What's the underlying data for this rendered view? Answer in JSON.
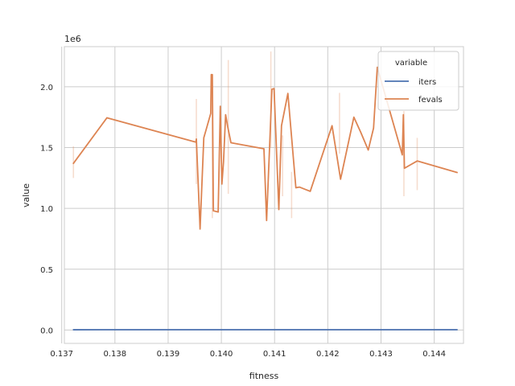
{
  "chart_data": {
    "type": "line",
    "xlabel": "fitness",
    "ylabel": "value",
    "y_offset_label": "1e6",
    "xlim": [
      0.13705,
      0.14455
    ],
    "ylim": [
      -110000,
      2330000
    ],
    "grid": true,
    "legend": {
      "title": "variable",
      "placement": "top-right"
    },
    "x_ticks": [
      {
        "value": 0.137,
        "label": "0.137"
      },
      {
        "value": 0.138,
        "label": "0.138"
      },
      {
        "value": 0.139,
        "label": "0.139"
      },
      {
        "value": 0.14,
        "label": "0.140"
      },
      {
        "value": 0.141,
        "label": "0.141"
      },
      {
        "value": 0.142,
        "label": "0.142"
      },
      {
        "value": 0.143,
        "label": "0.143"
      },
      {
        "value": 0.144,
        "label": "0.144"
      }
    ],
    "y_ticks": [
      {
        "value": 0,
        "label": "0.0"
      },
      {
        "value": 500000,
        "label": "0.5"
      },
      {
        "value": 1000000,
        "label": "1.0"
      },
      {
        "value": 1500000,
        "label": "1.5"
      },
      {
        "value": 2000000,
        "label": "2.0"
      }
    ],
    "series": [
      {
        "name": "iters",
        "color": "#4c72b0",
        "x": [
          0.13722,
          0.13785,
          0.13953,
          0.1398,
          0.1401,
          0.1408,
          0.14098,
          0.14123,
          0.14207,
          0.14287,
          0.14342,
          0.14368,
          0.14443
        ],
        "y": [
          2000,
          2500,
          2300,
          2400,
          2500,
          2300,
          2400,
          2600,
          2300,
          2500,
          2400,
          2600,
          2300
        ]
      },
      {
        "name": "fevals",
        "color": "#dd8452",
        "x": [
          0.13722,
          0.13785,
          0.13952,
          0.13953,
          0.1396,
          0.13967,
          0.1398,
          0.13981,
          0.13983,
          0.13985,
          0.13994,
          0.13998,
          0.14001,
          0.14004,
          0.14008,
          0.14012,
          0.14018,
          0.1408,
          0.14085,
          0.14095,
          0.14099,
          0.14108,
          0.14113,
          0.14125,
          0.1414,
          0.14147,
          0.14167,
          0.14208,
          0.14224,
          0.14249,
          0.14262,
          0.14276,
          0.14286,
          0.14293,
          0.1434,
          0.14342,
          0.14344,
          0.14368,
          0.14443
        ],
        "y": [
          1370000,
          1745000,
          1545000,
          1570000,
          830000,
          1580000,
          1780000,
          2100000,
          2100000,
          980000,
          970000,
          1840000,
          1200000,
          1380000,
          1770000,
          1670000,
          1540000,
          1490000,
          900000,
          1980000,
          1985000,
          990000,
          1680000,
          1945000,
          1170000,
          1175000,
          1140000,
          1680000,
          1240000,
          1750000,
          1625000,
          1480000,
          1660000,
          2160000,
          1440000,
          1770000,
          1330000,
          1390000,
          1295000
        ]
      }
    ],
    "ci_bands": [
      {
        "x": 0.13722,
        "low": 1250000,
        "high": 1510000
      },
      {
        "x": 0.13953,
        "low": 1200000,
        "high": 1900000
      },
      {
        "x": 0.13983,
        "low": 920000,
        "high": 2100000
      },
      {
        "x": 0.14013,
        "low": 1120000,
        "high": 2220000
      },
      {
        "x": 0.14093,
        "low": 1500000,
        "high": 2290000
      },
      {
        "x": 0.14115,
        "low": 1100000,
        "high": 1600000
      },
      {
        "x": 0.14132,
        "low": 920000,
        "high": 1300000
      },
      {
        "x": 0.14222,
        "low": 1450000,
        "high": 1950000
      },
      {
        "x": 0.14343,
        "low": 1100000,
        "high": 1800000
      },
      {
        "x": 0.14368,
        "low": 1150000,
        "high": 1580000
      }
    ]
  }
}
